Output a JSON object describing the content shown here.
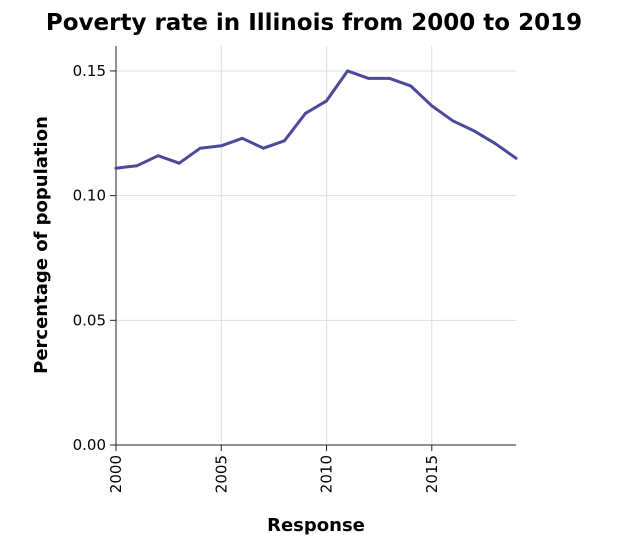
{
  "chart_data": {
    "type": "line",
    "title": "Poverty rate in Illinois from 2000 to 2019",
    "xlabel": "Response",
    "ylabel": "Percentage of population",
    "xlim": [
      2000,
      2019
    ],
    "ylim": [
      0,
      0.16
    ],
    "x_ticks": [
      2000,
      2005,
      2010,
      2015
    ],
    "x_tick_labels": [
      "2000",
      "2005",
      "2010",
      "2015"
    ],
    "y_ticks": [
      0,
      0.05,
      0.1,
      0.15
    ],
    "y_tick_labels": [
      "0.00",
      "0.05",
      "0.10",
      "0.15"
    ],
    "grid": true,
    "series": [
      {
        "color": "#4b4a9a",
        "x": [
          2000,
          2001,
          2002,
          2003,
          2004,
          2005,
          2006,
          2007,
          2008,
          2009,
          2010,
          2011,
          2012,
          2013,
          2014,
          2015,
          2016,
          2017,
          2018,
          2019
        ],
        "y": [
          0.111,
          0.112,
          0.116,
          0.113,
          0.119,
          0.12,
          0.123,
          0.119,
          0.122,
          0.133,
          0.138,
          0.15,
          0.147,
          0.147,
          0.144,
          0.136,
          0.13,
          0.126,
          0.121,
          0.115
        ]
      }
    ]
  }
}
